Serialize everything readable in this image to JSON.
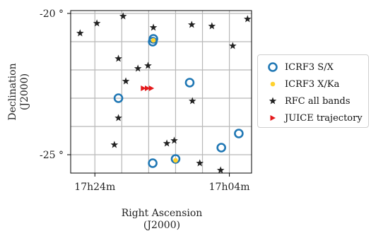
{
  "chart_data": {
    "type": "scatter",
    "xlabel": "Right Ascension\n(J2000)",
    "ylabel": "Declination\n(J2000)",
    "x_unit": "minutes of RA within 17h",
    "xlim": [
      27.6,
      0.7
    ],
    "ylim": [
      -25.65,
      -19.9
    ],
    "x_ticks": [
      {
        "value": 24,
        "label": "17h24m"
      },
      {
        "value": 4,
        "label": "17h04m"
      }
    ],
    "y_ticks": [
      {
        "value": -20,
        "label": "-20 °"
      },
      {
        "value": -25,
        "label": "-25 °"
      }
    ],
    "grid": true,
    "legend_position": "right outside",
    "series": [
      {
        "name": "ICRF3 S/X",
        "marker": "open-circle",
        "color": "#1f77b4",
        "points": [
          [
            15.3,
            -20.9
          ],
          [
            15.4,
            -21.0
          ],
          [
            9.9,
            -22.45
          ],
          [
            20.5,
            -23.0
          ],
          [
            5.2,
            -24.75
          ],
          [
            2.6,
            -24.25
          ],
          [
            12.0,
            -25.15
          ],
          [
            15.4,
            -25.3
          ]
        ]
      },
      {
        "name": "ICRF3 X/Ka",
        "marker": "filled-circle",
        "color": "#ffd22e",
        "points": [
          [
            15.3,
            -20.95
          ],
          [
            12.0,
            -25.2
          ]
        ]
      },
      {
        "name": "RFC all bands",
        "marker": "star",
        "color": "#222222",
        "points": [
          [
            26.2,
            -20.7
          ],
          [
            23.7,
            -20.35
          ],
          [
            19.8,
            -20.1
          ],
          [
            20.5,
            -21.6
          ],
          [
            19.4,
            -22.4
          ],
          [
            17.6,
            -21.95
          ],
          [
            16.1,
            -21.85
          ],
          [
            15.3,
            -20.5
          ],
          [
            9.6,
            -20.4
          ],
          [
            6.6,
            -20.45
          ],
          [
            3.5,
            -21.15
          ],
          [
            1.3,
            -20.2
          ],
          [
            9.5,
            -23.1
          ],
          [
            20.5,
            -23.7
          ],
          [
            21.1,
            -24.65
          ],
          [
            13.3,
            -24.6
          ],
          [
            12.2,
            -24.5
          ],
          [
            8.4,
            -25.3
          ],
          [
            5.3,
            -25.55
          ]
        ]
      },
      {
        "name": "JUICE trajectory",
        "marker": "triangle-right",
        "color": "#e41a1c",
        "points": [
          [
            16.8,
            -22.65
          ],
          [
            16.2,
            -22.65
          ],
          [
            15.6,
            -22.65
          ]
        ]
      }
    ]
  }
}
